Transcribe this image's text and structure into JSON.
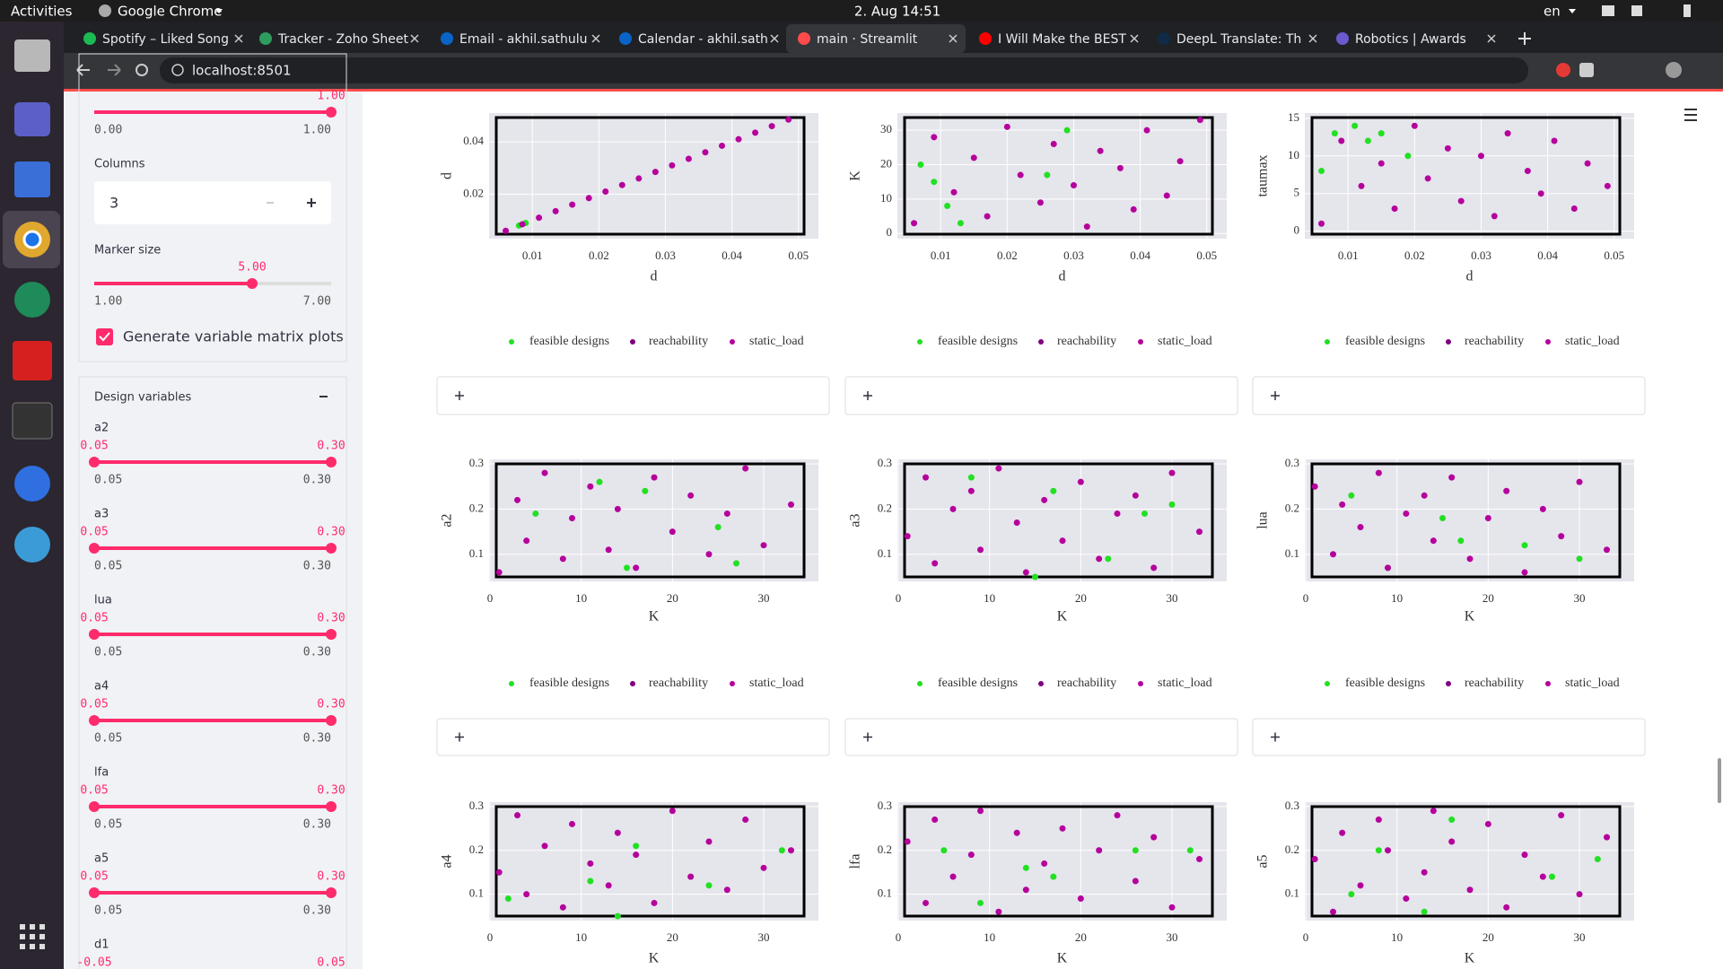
{
  "top_bar": {
    "activities": "Activities",
    "app": "Google Chrome",
    "clock": "2. Aug  14:51",
    "lang": "en"
  },
  "tabs": [
    "Spotify – Liked Song",
    "Tracker - Zoho Sheet",
    "Email - akhil.sathulu",
    "Calendar - akhil.sath",
    "main · Streamlit",
    "I Will Make the BEST",
    "DeepL Translate: Th",
    "Robotics | Awards"
  ],
  "address": "localhost:8501",
  "sidebar": {
    "top_slider": {
      "value": "1.00",
      "min": "0.00",
      "max": "1.00"
    },
    "columns_label": "Columns",
    "columns_value": "3",
    "marker_size": {
      "label": "Marker size",
      "value": "5.00",
      "min": "1.00",
      "max": "7.00"
    },
    "checkbox": "Generate variable matrix plots",
    "expander_title": "Design variables",
    "sliders": [
      {
        "label": "a2",
        "low": "0.05",
        "high": "0.30",
        "min": "0.05",
        "max": "0.30"
      },
      {
        "label": "a3",
        "low": "0.05",
        "high": "0.30",
        "min": "0.05",
        "max": "0.30"
      },
      {
        "label": "lua",
        "low": "0.05",
        "high": "0.30",
        "min": "0.05",
        "max": "0.30"
      },
      {
        "label": "a4",
        "low": "0.05",
        "high": "0.30",
        "min": "0.05",
        "max": "0.30"
      },
      {
        "label": "lfa",
        "low": "0.05",
        "high": "0.30",
        "min": "0.05",
        "max": "0.30"
      },
      {
        "label": "a5",
        "low": "0.05",
        "high": "0.30",
        "min": "0.05",
        "max": "0.30"
      },
      {
        "label": "d1",
        "low": "-0.05",
        "high": "0.05"
      }
    ]
  },
  "chart_data": [
    {
      "type": "scatter",
      "xlabel": "d",
      "ylabel": "d",
      "xlim": [
        0.0035,
        0.053
      ],
      "ylim": [
        0.003,
        0.051
      ],
      "xticks": [
        0.01,
        0.02,
        0.03,
        0.04,
        0.05
      ],
      "yticks": [
        0.02,
        0.04
      ],
      "grid": true,
      "legend": true,
      "series": [
        {
          "name": "feasible designs",
          "color": "#22e022",
          "x": [
            0.008,
            0.009
          ],
          "y": [
            0.008,
            0.009
          ]
        },
        {
          "name": "reachability",
          "color": "#800080",
          "x": [],
          "y": []
        },
        {
          "name": "static_load",
          "color": "#b5009b",
          "x": [
            0.006,
            0.0085,
            0.011,
            0.0135,
            0.016,
            0.0185,
            0.021,
            0.0235,
            0.026,
            0.0285,
            0.031,
            0.0335,
            0.036,
            0.0385,
            0.041,
            0.0435,
            0.046,
            0.0485
          ],
          "y": [
            0.006,
            0.0085,
            0.011,
            0.0135,
            0.016,
            0.0185,
            0.021,
            0.0235,
            0.026,
            0.0285,
            0.031,
            0.0335,
            0.036,
            0.0385,
            0.041,
            0.0435,
            0.046,
            0.0485
          ]
        }
      ]
    },
    {
      "type": "scatter",
      "xlabel": "d",
      "ylabel": "K",
      "xlim": [
        0.0035,
        0.053
      ],
      "ylim": [
        -1.5,
        35
      ],
      "xticks": [
        0.01,
        0.02,
        0.03,
        0.04,
        0.05
      ],
      "yticks": [
        0,
        10,
        20,
        30
      ],
      "grid": true,
      "legend": true,
      "series": [
        {
          "name": "feasible designs",
          "color": "#22e022",
          "x": [
            0.007,
            0.009,
            0.011,
            0.013,
            0.026,
            0.029
          ],
          "y": [
            20,
            15,
            8,
            3,
            17,
            30
          ]
        },
        {
          "name": "reachability",
          "color": "#800080",
          "x": [],
          "y": []
        },
        {
          "name": "static_load",
          "color": "#b5009b",
          "x": [
            0.006,
            0.009,
            0.012,
            0.015,
            0.017,
            0.02,
            0.022,
            0.025,
            0.027,
            0.03,
            0.032,
            0.034,
            0.037,
            0.039,
            0.041,
            0.044,
            0.046,
            0.049
          ],
          "y": [
            3,
            28,
            12,
            22,
            5,
            31,
            17,
            9,
            26,
            14,
            2,
            24,
            19,
            7,
            30,
            11,
            21,
            33
          ]
        }
      ]
    },
    {
      "type": "scatter",
      "xlabel": "d",
      "ylabel": "taumax",
      "xlim": [
        0.0035,
        0.053
      ],
      "ylim": [
        -1,
        15.7
      ],
      "xticks": [
        0.01,
        0.02,
        0.03,
        0.04,
        0.05
      ],
      "yticks": [
        0,
        5,
        10,
        15
      ],
      "grid": true,
      "legend": true,
      "series": [
        {
          "name": "feasible designs",
          "color": "#22e022",
          "x": [
            0.006,
            0.008,
            0.011,
            0.013,
            0.015,
            0.019
          ],
          "y": [
            8,
            13,
            14,
            12,
            13,
            10
          ]
        },
        {
          "name": "reachability",
          "color": "#800080",
          "x": [],
          "y": []
        },
        {
          "name": "static_load",
          "color": "#b5009b",
          "x": [
            0.006,
            0.009,
            0.012,
            0.015,
            0.017,
            0.02,
            0.022,
            0.025,
            0.027,
            0.03,
            0.032,
            0.034,
            0.037,
            0.039,
            0.041,
            0.044,
            0.046,
            0.049
          ],
          "y": [
            1,
            12,
            6,
            9,
            3,
            14,
            7,
            11,
            4,
            10,
            2,
            13,
            8,
            5,
            12,
            3,
            9,
            6
          ]
        }
      ]
    },
    {
      "type": "scatter",
      "xlabel": "K",
      "ylabel": "a2",
      "xlim": [
        -0.1,
        36
      ],
      "ylim": [
        0.04,
        0.31
      ],
      "xticks": [
        0,
        10,
        20,
        30
      ],
      "yticks": [
        0.1,
        0.2,
        0.3
      ],
      "grid": true,
      "legend": true,
      "series": [
        {
          "name": "feasible designs",
          "color": "#22e022",
          "x": [
            5,
            12,
            15,
            17,
            25,
            27
          ],
          "y": [
            0.19,
            0.26,
            0.07,
            0.24,
            0.16,
            0.08
          ]
        },
        {
          "name": "reachability",
          "color": "#800080",
          "x": [],
          "y": []
        },
        {
          "name": "static_load",
          "color": "#b5009b",
          "x": [
            1,
            3,
            4,
            6,
            8,
            9,
            11,
            13,
            14,
            16,
            18,
            20,
            22,
            24,
            26,
            28,
            30,
            33
          ],
          "y": [
            0.06,
            0.22,
            0.13,
            0.28,
            0.09,
            0.18,
            0.25,
            0.11,
            0.2,
            0.07,
            0.27,
            0.15,
            0.23,
            0.1,
            0.19,
            0.29,
            0.12,
            0.21
          ]
        }
      ]
    },
    {
      "type": "scatter",
      "xlabel": "K",
      "ylabel": "a3",
      "xlim": [
        -0.1,
        36
      ],
      "ylim": [
        0.04,
        0.31
      ],
      "xticks": [
        0,
        10,
        20,
        30
      ],
      "yticks": [
        0.1,
        0.2,
        0.3
      ],
      "grid": true,
      "legend": true,
      "series": [
        {
          "name": "feasible designs",
          "color": "#22e022",
          "x": [
            8,
            15,
            17,
            23,
            27,
            30
          ],
          "y": [
            0.27,
            0.05,
            0.24,
            0.09,
            0.19,
            0.21
          ]
        },
        {
          "name": "reachability",
          "color": "#800080",
          "x": [],
          "y": []
        },
        {
          "name": "static_load",
          "color": "#b5009b",
          "x": [
            1,
            3,
            4,
            6,
            8,
            9,
            11,
            13,
            14,
            16,
            18,
            20,
            22,
            24,
            26,
            28,
            30,
            33
          ],
          "y": [
            0.14,
            0.27,
            0.08,
            0.2,
            0.24,
            0.11,
            0.29,
            0.17,
            0.06,
            0.22,
            0.13,
            0.26,
            0.09,
            0.19,
            0.23,
            0.07,
            0.28,
            0.15
          ]
        }
      ]
    },
    {
      "type": "scatter",
      "xlabel": "K",
      "ylabel": "lua",
      "xlim": [
        -0.1,
        36
      ],
      "ylim": [
        0.04,
        0.31
      ],
      "xticks": [
        0,
        10,
        20,
        30
      ],
      "yticks": [
        0.1,
        0.2,
        0.3
      ],
      "grid": true,
      "legend": true,
      "series": [
        {
          "name": "feasible designs",
          "color": "#22e022",
          "x": [
            5,
            9,
            15,
            17,
            24,
            30
          ],
          "y": [
            0.23,
            0.07,
            0.18,
            0.13,
            0.12,
            0.09
          ]
        },
        {
          "name": "reachability",
          "color": "#800080",
          "x": [],
          "y": []
        },
        {
          "name": "static_load",
          "color": "#b5009b",
          "x": [
            1,
            3,
            4,
            6,
            8,
            9,
            11,
            13,
            14,
            16,
            18,
            20,
            22,
            24,
            26,
            28,
            30,
            33
          ],
          "y": [
            0.25,
            0.1,
            0.21,
            0.16,
            0.28,
            0.07,
            0.19,
            0.23,
            0.13,
            0.27,
            0.09,
            0.18,
            0.24,
            0.06,
            0.2,
            0.14,
            0.26,
            0.11
          ]
        }
      ]
    },
    {
      "type": "scatter",
      "xlabel": "K",
      "ylabel": "a4",
      "xlim": [
        -0.1,
        36
      ],
      "ylim": [
        0.04,
        0.31
      ],
      "xticks": [
        0,
        10,
        20,
        30
      ],
      "yticks": [
        0.1,
        0.2,
        0.3
      ],
      "grid": true,
      "legend": false,
      "series": [
        {
          "color": "#22e022",
          "x": [
            2,
            11,
            14,
            16,
            24,
            32
          ],
          "y": [
            0.09,
            0.13,
            0.05,
            0.21,
            0.12,
            0.2
          ]
        },
        {
          "color": "#b5009b",
          "x": [
            1,
            3,
            4,
            6,
            8,
            9,
            11,
            13,
            14,
            16,
            18,
            20,
            22,
            24,
            26,
            28,
            30,
            33
          ],
          "y": [
            0.15,
            0.28,
            0.1,
            0.21,
            0.07,
            0.26,
            0.17,
            0.12,
            0.24,
            0.19,
            0.08,
            0.29,
            0.14,
            0.22,
            0.11,
            0.27,
            0.16,
            0.2
          ]
        }
      ]
    },
    {
      "type": "scatter",
      "xlabel": "K",
      "ylabel": "lfa",
      "xlim": [
        -0.1,
        36
      ],
      "ylim": [
        0.04,
        0.31
      ],
      "xticks": [
        0,
        10,
        20,
        30
      ],
      "yticks": [
        0.1,
        0.2,
        0.3
      ],
      "grid": true,
      "legend": false,
      "series": [
        {
          "color": "#22e022",
          "x": [
            5,
            9,
            14,
            17,
            26,
            32
          ],
          "y": [
            0.2,
            0.08,
            0.16,
            0.14,
            0.2,
            0.2
          ]
        },
        {
          "color": "#b5009b",
          "x": [
            1,
            3,
            4,
            6,
            8,
            9,
            11,
            13,
            14,
            16,
            18,
            20,
            22,
            24,
            26,
            28,
            30,
            33
          ],
          "y": [
            0.22,
            0.08,
            0.27,
            0.14,
            0.19,
            0.29,
            0.06,
            0.24,
            0.11,
            0.17,
            0.25,
            0.09,
            0.2,
            0.28,
            0.13,
            0.23,
            0.07,
            0.18
          ]
        }
      ]
    },
    {
      "type": "scatter",
      "xlabel": "K",
      "ylabel": "a5",
      "xlim": [
        -0.1,
        36
      ],
      "ylim": [
        0.04,
        0.31
      ],
      "xticks": [
        0,
        10,
        20,
        30
      ],
      "yticks": [
        0.1,
        0.2,
        0.3
      ],
      "grid": true,
      "legend": false,
      "series": [
        {
          "color": "#22e022",
          "x": [
            5,
            8,
            13,
            16,
            27,
            32
          ],
          "y": [
            0.1,
            0.2,
            0.06,
            0.27,
            0.14,
            0.18
          ]
        },
        {
          "color": "#b5009b",
          "x": [
            1,
            3,
            4,
            6,
            8,
            9,
            11,
            13,
            14,
            16,
            18,
            20,
            22,
            24,
            26,
            28,
            30,
            33
          ],
          "y": [
            0.18,
            0.06,
            0.24,
            0.12,
            0.27,
            0.2,
            0.09,
            0.15,
            0.29,
            0.22,
            0.11,
            0.26,
            0.07,
            0.19,
            0.14,
            0.28,
            0.1,
            0.23
          ]
        }
      ]
    }
  ]
}
